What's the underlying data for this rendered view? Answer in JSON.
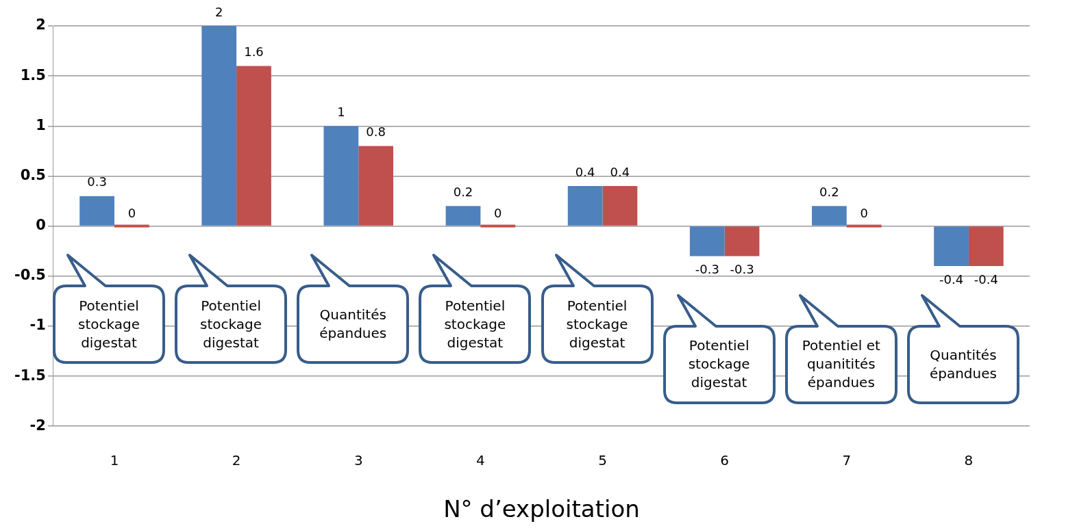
{
  "chart_data": {
    "type": "bar",
    "xlabel": "N° d’exploitation",
    "categories": [
      "1",
      "2",
      "3",
      "4",
      "5",
      "6",
      "7",
      "8"
    ],
    "series": [
      {
        "color": "#4f81bd",
        "values": [
          0.3,
          2,
          1,
          0.2,
          0.4,
          -0.3,
          0.2,
          -0.4
        ]
      },
      {
        "color": "#c0504d",
        "values": [
          0,
          1.6,
          0.8,
          0,
          0.4,
          -0.3,
          0,
          -0.4
        ]
      }
    ],
    "ylim": [
      -2,
      2
    ],
    "yticks": [
      -2,
      -1.5,
      -1,
      -0.5,
      0,
      0.5,
      1,
      1.5,
      2
    ],
    "grid": "y",
    "data_labels": true,
    "legend": false,
    "annotations": [
      "Potentiel stockage digestat",
      "Potentiel stockage digestat",
      "Quantités épandues",
      "Potentiel stockage digestat",
      "Potentiel stockage digestat",
      "Potentiel stockage digestat",
      "Potentiel et quanitités épandues",
      "Quantités épandues"
    ]
  }
}
